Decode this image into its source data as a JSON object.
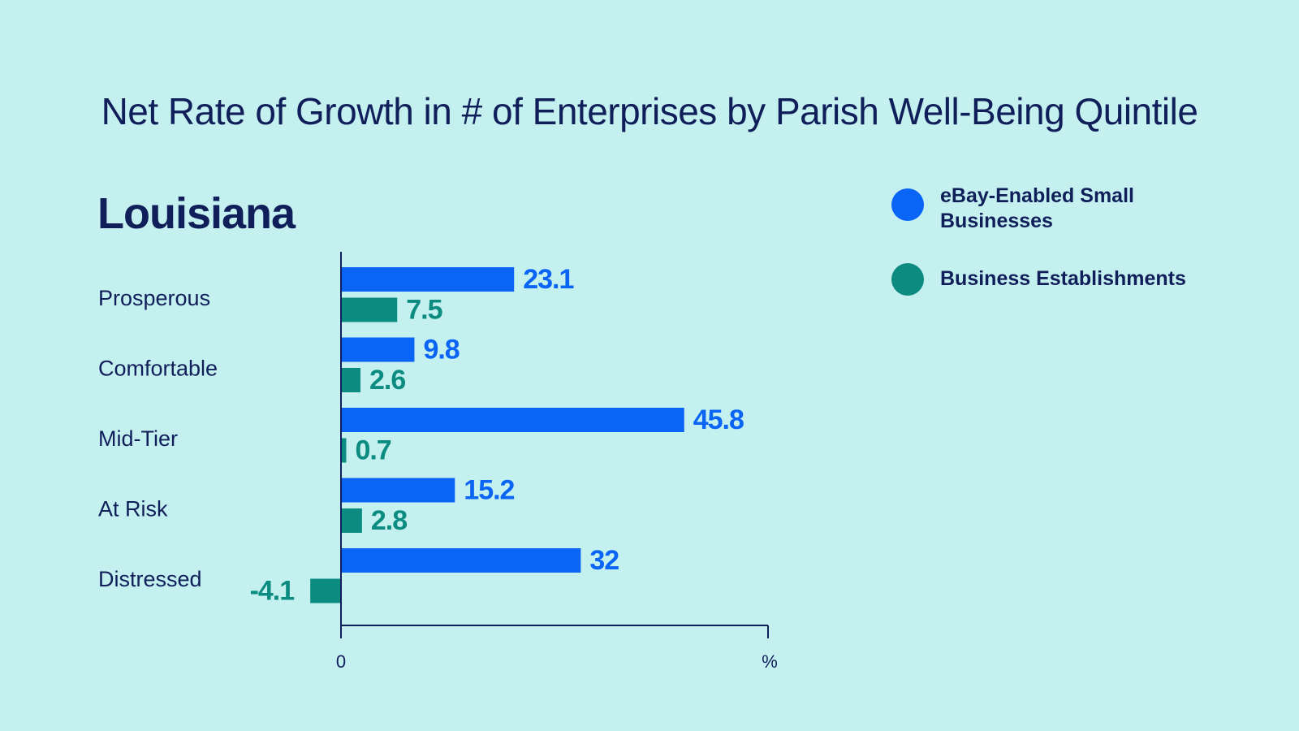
{
  "chart_data": {
    "type": "bar",
    "orientation": "horizontal",
    "title": "Net Rate of Growth in # of Enterprises by Parish Well-Being Quintile",
    "subtitle": "Louisiana",
    "categories": [
      "Prosperous",
      "Comfortable",
      "Mid-Tier",
      "At Risk",
      "Distressed"
    ],
    "series": [
      {
        "name": "eBay-Enabled Small Businesses",
        "color": "#0a64f5",
        "values": [
          23.1,
          9.8,
          45.8,
          15.2,
          32
        ],
        "labels": [
          "23.1",
          "9.8",
          "45.8",
          "15.2",
          "32"
        ]
      },
      {
        "name": "Business Establishments",
        "color": "#0c8c80",
        "values": [
          7.5,
          2.6,
          0.7,
          2.8,
          -4.1
        ],
        "labels": [
          "7.5",
          "2.6",
          "0.7",
          "2.8",
          "-4.1"
        ]
      }
    ],
    "x_ticks": [
      "0",
      "%"
    ],
    "xlim": [
      -4.1,
      57.6
    ],
    "legend_position": "top-right",
    "grid": false
  }
}
